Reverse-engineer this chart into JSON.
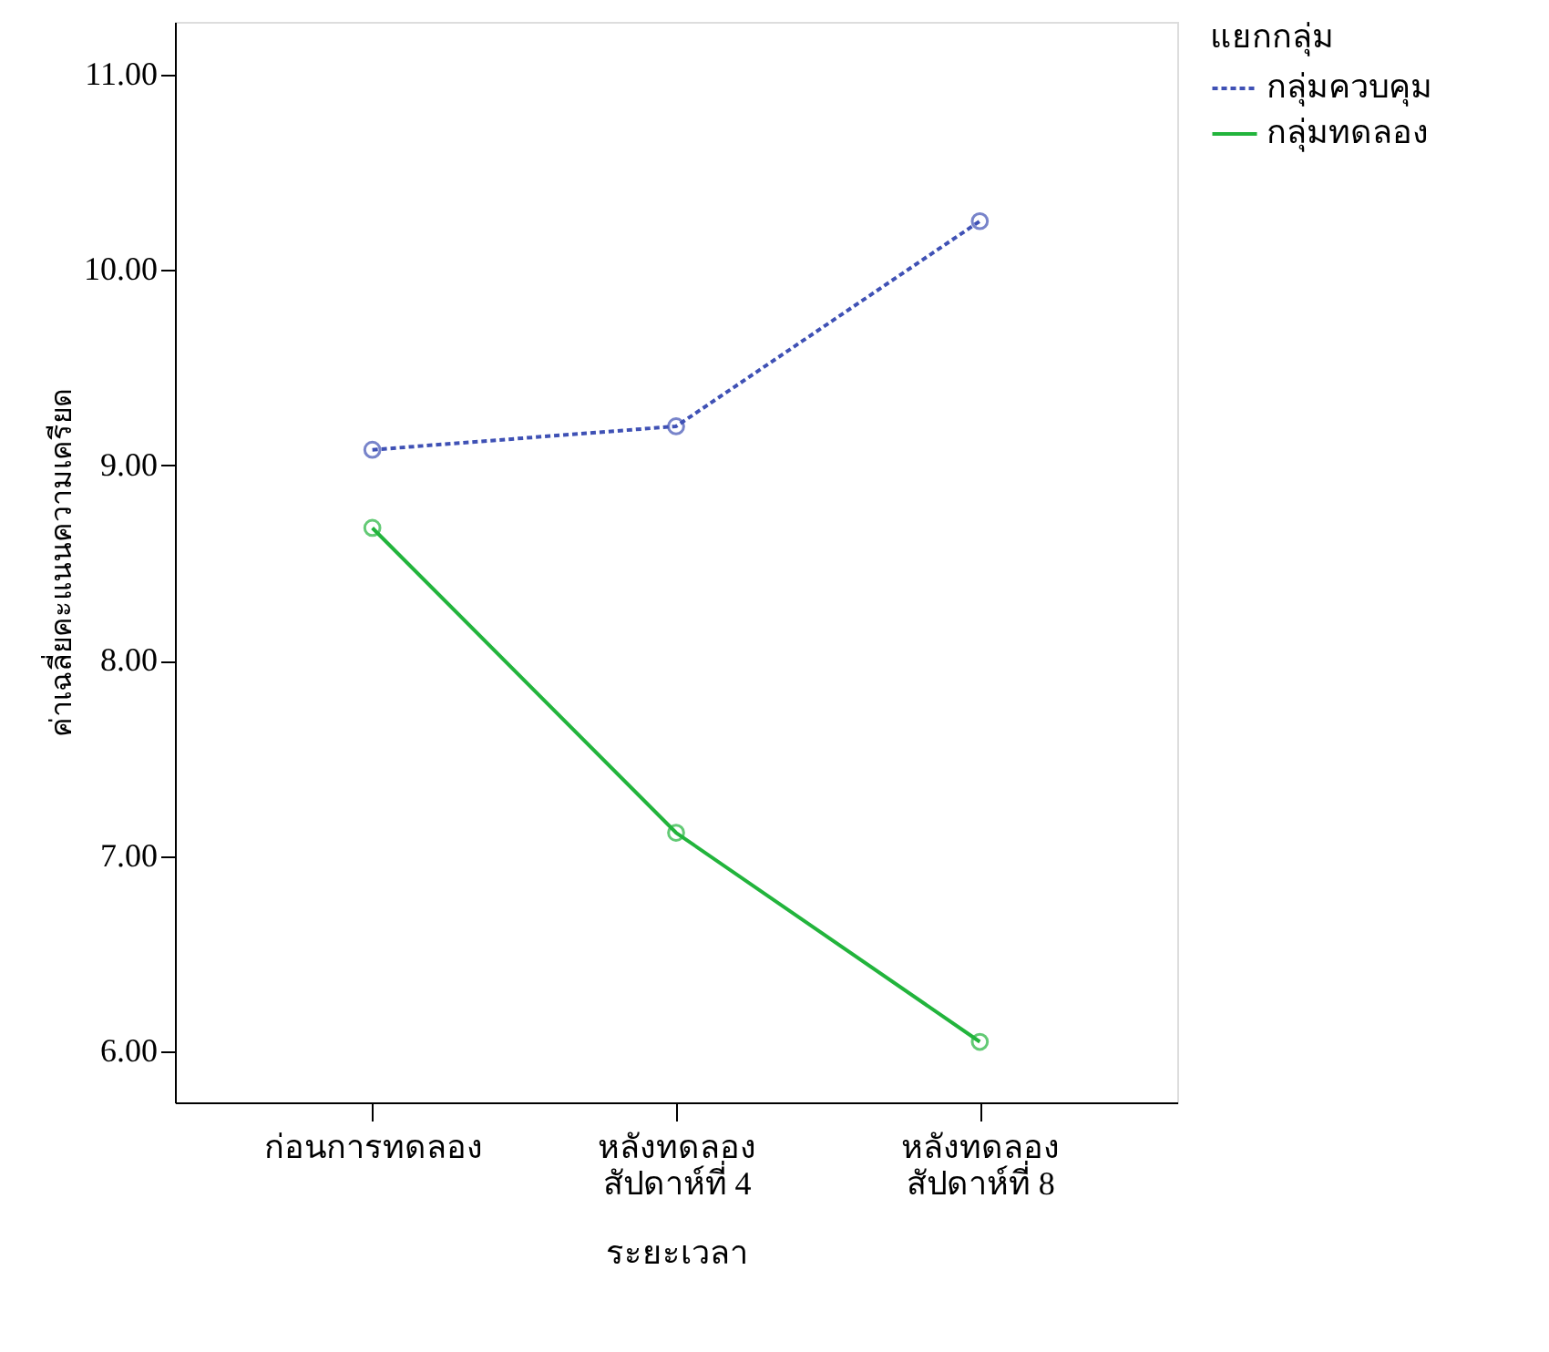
{
  "chart_data": {
    "type": "line",
    "xlabel": "ระยะเวลา",
    "ylabel": "ค่าเฉลี่ยคะแนนความเครียด",
    "legend_title": "แยกกลุ่ม",
    "legend": "right",
    "grid": false,
    "marker": "circle",
    "categories": [
      "ก่อนการทดลอง",
      "หลังทดลอง\nสัปดาห์ที่ 4",
      "หลังทดลอง\nสัปดาห์ที่ 8"
    ],
    "ylim": [
      5.74,
      11.27
    ],
    "yticks": [
      {
        "value": 6,
        "label": "6.00"
      },
      {
        "value": 7,
        "label": "7.00"
      },
      {
        "value": 8,
        "label": "8.00"
      },
      {
        "value": 9,
        "label": "9.00"
      },
      {
        "value": 10,
        "label": "10.00"
      },
      {
        "value": 11,
        "label": "11.00"
      }
    ],
    "series": [
      {
        "name": "กลุ่มควบคุม",
        "color": "#3f51b5",
        "line_style": "dashed",
        "values": [
          9.08,
          9.2,
          10.25
        ]
      },
      {
        "name": "กลุ่มทดลอง",
        "color": "#22b43c",
        "line_style": "solid",
        "values": [
          8.68,
          7.12,
          6.05
        ]
      }
    ]
  }
}
